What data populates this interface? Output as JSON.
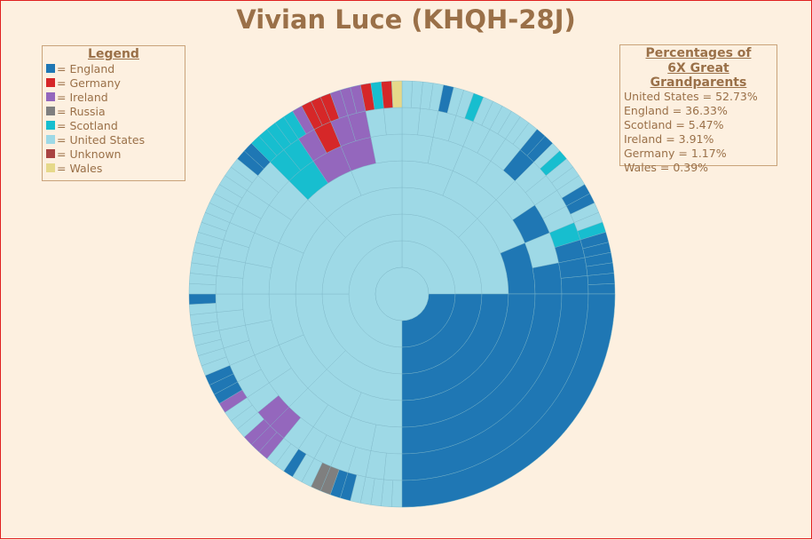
{
  "title": "Vivian Luce (KHQH-28J)",
  "legend": {
    "title": "Legend",
    "items": [
      {
        "label": "= England",
        "color": "#1f77b4"
      },
      {
        "label": "= Germany",
        "color": "#d62728"
      },
      {
        "label": "= Ireland",
        "color": "#9467bd"
      },
      {
        "label": "= Russia",
        "color": "#7f7f7f"
      },
      {
        "label": "= Scotland",
        "color": "#17becf"
      },
      {
        "label": "= United States",
        "color": "#9ed9e6"
      },
      {
        "label": "= Unknown",
        "color": "#a94442"
      },
      {
        "label": "= Wales",
        "color": "#e6d98a"
      }
    ]
  },
  "percentages": {
    "title_line1": "Percentages of",
    "title_line2": "6X Great Grandparents",
    "rows": [
      "United States = 52.73%",
      "England = 36.33%",
      "Scotland = 5.47%",
      "Ireland = 3.91%",
      "Germany = 1.17%",
      "Wales = 0.39%"
    ]
  },
  "chart_data": {
    "type": "sunburst",
    "title": "Vivian Luce (KHQH-28J)",
    "generations": 8,
    "categories": [
      "United States",
      "England",
      "Scotland",
      "Ireland",
      "Germany",
      "Wales"
    ],
    "values": [
      52.73,
      36.33,
      5.47,
      3.91,
      1.17,
      0.39
    ],
    "unit": "%"
  }
}
